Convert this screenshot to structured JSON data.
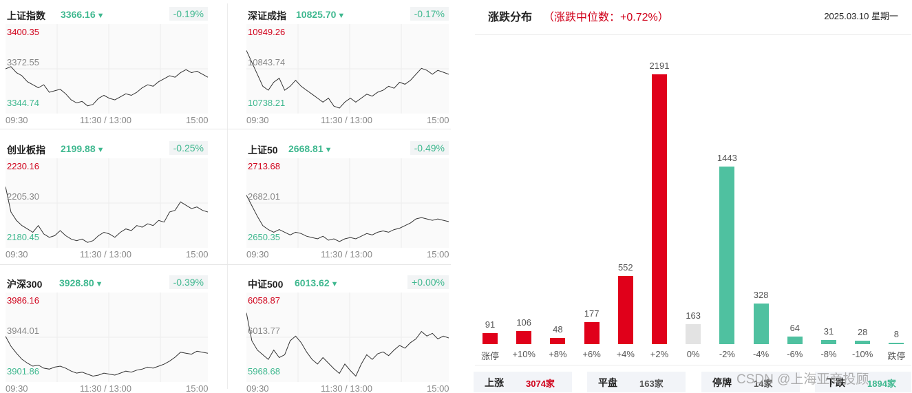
{
  "panels": [
    {
      "name": "上证指数",
      "value": "3366.16",
      "change": "-0.19%",
      "high": "3400.35",
      "mid": "3372.55",
      "low": "3344.74",
      "x_start": "09:30",
      "x_mid": "11:30 / 13:00",
      "x_end": "15:00",
      "series": [
        3372.5,
        3374,
        3370,
        3368,
        3364,
        3362,
        3360,
        3362,
        3357,
        3358,
        3359,
        3356,
        3352,
        3350,
        3351,
        3348,
        3349,
        3353,
        3355,
        3353,
        3352,
        3354,
        3356,
        3355,
        3357,
        3360,
        3362,
        3361,
        3364,
        3366,
        3368,
        3367,
        3370,
        3372,
        3370,
        3371,
        3369,
        3367
      ]
    },
    {
      "name": "深证成指",
      "value": "10825.70",
      "change": "-0.17%",
      "high": "10949.26",
      "mid": "10843.74",
      "low": "10738.21",
      "x_start": "09:30",
      "x_mid": "11:30 / 13:00",
      "x_end": "15:00",
      "series": [
        10890,
        10860,
        10830,
        10800,
        10790,
        10810,
        10820,
        10790,
        10800,
        10815,
        10800,
        10790,
        10780,
        10770,
        10760,
        10770,
        10750,
        10745,
        10760,
        10770,
        10760,
        10770,
        10780,
        10775,
        10785,
        10790,
        10800,
        10795,
        10810,
        10805,
        10815,
        10830,
        10845,
        10840,
        10830,
        10840,
        10835,
        10830
      ]
    },
    {
      "name": "创业板指",
      "value": "2199.88",
      "change": "-0.25%",
      "high": "2230.16",
      "mid": "2205.30",
      "low": "2180.45",
      "x_start": "09:30",
      "x_mid": "11:30 / 13:00",
      "x_end": "15:00",
      "series": [
        2215,
        2200,
        2195,
        2192,
        2190,
        2188,
        2192,
        2187,
        2185,
        2186,
        2189,
        2186,
        2184,
        2183,
        2184,
        2182,
        2183,
        2186,
        2188,
        2187,
        2185,
        2188,
        2190,
        2189,
        2192,
        2191,
        2193,
        2192,
        2195,
        2194,
        2200,
        2201,
        2206,
        2204,
        2202,
        2203,
        2201,
        2200
      ]
    },
    {
      "name": "上证50",
      "value": "2668.81",
      "change": "-0.49%",
      "high": "2713.68",
      "mid": "2682.01",
      "low": "2650.35",
      "x_start": "09:30",
      "x_mid": "11:30 / 13:00",
      "x_end": "15:00",
      "series": [
        2688,
        2680,
        2672,
        2665,
        2662,
        2660,
        2662,
        2660,
        2658,
        2660,
        2659,
        2657,
        2656,
        2655,
        2657,
        2654,
        2655,
        2653,
        2655,
        2656,
        2655,
        2657,
        2659,
        2658,
        2660,
        2661,
        2660,
        2662,
        2663,
        2665,
        2667,
        2670,
        2671,
        2670,
        2669,
        2670,
        2669,
        2668
      ]
    },
    {
      "name": "沪深300",
      "value": "3928.80",
      "change": "-0.39%",
      "high": "3986.16",
      "mid": "3944.01",
      "low": "3901.86",
      "x_start": "09:30",
      "x_mid": "11:30 / 13:00",
      "x_end": "15:00",
      "series": [
        3945,
        3935,
        3928,
        3922,
        3918,
        3915,
        3916,
        3913,
        3912,
        3914,
        3915,
        3913,
        3910,
        3908,
        3909,
        3907,
        3905,
        3906,
        3908,
        3907,
        3906,
        3908,
        3910,
        3909,
        3911,
        3912,
        3914,
        3913,
        3915,
        3917,
        3920,
        3924,
        3929,
        3928,
        3927,
        3930,
        3929,
        3928
      ]
    },
    {
      "name": "中证500",
      "value": "6013.62",
      "change": "+0.00%",
      "high": "6058.87",
      "mid": "6013.77",
      "low": "5968.68",
      "x_start": "09:30",
      "x_mid": "11:30 / 13:00",
      "x_end": "15:00",
      "series": [
        6040,
        6010,
        6000,
        5995,
        5990,
        6000,
        5992,
        5995,
        6010,
        6015,
        6008,
        5998,
        5990,
        5985,
        5992,
        5986,
        5980,
        5975,
        5985,
        5978,
        5972,
        5985,
        5995,
        5990,
        5996,
        5998,
        5994,
        6000,
        6005,
        6002,
        6008,
        6012,
        6020,
        6015,
        6018,
        6012,
        6015,
        6013
      ]
    }
  ],
  "distribution": {
    "title": "涨跌分布",
    "subtitle": "（涨跌中位数：+0.72%）",
    "date": "2025.03.10 星期一",
    "bars": [
      {
        "label": "涨停",
        "count": 91,
        "color": "#e0001a"
      },
      {
        "label": "+10%",
        "count": 106,
        "color": "#e0001a"
      },
      {
        "label": "+8%",
        "count": 48,
        "color": "#e0001a"
      },
      {
        "label": "+6%",
        "count": 177,
        "color": "#e0001a"
      },
      {
        "label": "+4%",
        "count": 552,
        "color": "#e0001a"
      },
      {
        "label": "+2%",
        "count": 2191,
        "color": "#e0001a"
      },
      {
        "label": "0%",
        "count": 163,
        "color": "#e3e3e3"
      },
      {
        "label": "-2%",
        "count": 1443,
        "color": "#4fc1a0"
      },
      {
        "label": "-4%",
        "count": 328,
        "color": "#4fc1a0"
      },
      {
        "label": "-6%",
        "count": 64,
        "color": "#4fc1a0"
      },
      {
        "label": "-8%",
        "count": 31,
        "color": "#4fc1a0"
      },
      {
        "label": "-10%",
        "count": 28,
        "color": "#4fc1a0"
      },
      {
        "label": "跌停",
        "count": 8,
        "color": "#4fc1a0"
      }
    ],
    "stats": [
      {
        "key": "上涨",
        "value": "3074家",
        "color": "#d0021b"
      },
      {
        "key": "平盘",
        "value": "163家",
        "color": "#555555"
      },
      {
        "key": "停牌",
        "value": "14家",
        "color": "#555555"
      },
      {
        "key": "下跌",
        "value": "1894家",
        "color": "#3fb88f"
      }
    ]
  },
  "watermark": "CSDN @上海亚商投顾",
  "colors": {
    "up": "#e0001a",
    "down": "#4fc1a0",
    "flat": "#e3e3e3"
  }
}
